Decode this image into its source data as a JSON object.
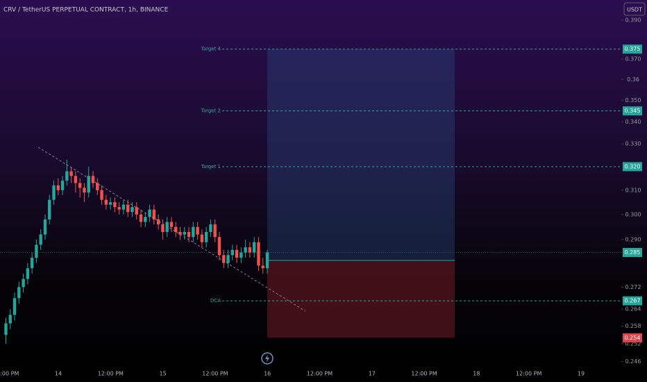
{
  "chart_data": {
    "type": "candlestick",
    "title": "CRV / TetherUS PERPETUAL CONTRACT, 1h, BINANCE",
    "currency": "USDT",
    "log_scale": true,
    "ylim": [
      0.2393,
      0.4007
    ],
    "yticks": [
      {
        "value": 0.39,
        "label": "0.390"
      },
      {
        "value": 0.37,
        "label": "0.370"
      },
      0.36,
      {
        "value": 0.35,
        "label": "0.350"
      },
      {
        "value": 0.34,
        "label": "0.340"
      },
      {
        "value": 0.33,
        "label": "0.330"
      },
      {
        "value": 0.31,
        "label": "0.310"
      },
      {
        "value": 0.3,
        "label": "0.300"
      },
      {
        "value": 0.29,
        "label": "0.290"
      },
      0.272,
      0.264,
      0.258,
      0.252,
      0.246
    ],
    "x_labels": [
      "12:00 PM",
      "14",
      "12:00 PM",
      "15",
      "12:00 PM",
      "16",
      "12:00 PM",
      "17",
      "12:00 PM",
      "18",
      "12:00 PM",
      "19"
    ],
    "up_color": "#26a69a",
    "down_color": "#ef5350",
    "candles": [
      [
        0.255,
        0.261,
        0.252,
        0.259
      ],
      [
        0.259,
        0.264,
        0.257,
        0.262
      ],
      [
        0.262,
        0.27,
        0.26,
        0.268
      ],
      [
        0.268,
        0.274,
        0.266,
        0.272
      ],
      [
        0.272,
        0.277,
        0.27,
        0.275
      ],
      [
        0.275,
        0.281,
        0.273,
        0.279
      ],
      [
        0.279,
        0.285,
        0.277,
        0.283
      ],
      [
        0.283,
        0.29,
        0.281,
        0.288
      ],
      [
        0.288,
        0.294,
        0.286,
        0.292
      ],
      [
        0.292,
        0.3,
        0.29,
        0.298
      ],
      [
        0.298,
        0.308,
        0.296,
        0.306
      ],
      [
        0.306,
        0.314,
        0.304,
        0.312
      ],
      [
        0.312,
        0.315,
        0.308,
        0.31
      ],
      [
        0.31,
        0.316,
        0.308,
        0.314
      ],
      [
        0.314,
        0.323,
        0.312,
        0.318
      ],
      [
        0.318,
        0.32,
        0.313,
        0.316
      ],
      [
        0.316,
        0.318,
        0.309,
        0.313
      ],
      [
        0.313,
        0.315,
        0.307,
        0.311
      ],
      [
        0.311,
        0.313,
        0.305,
        0.309
      ],
      [
        0.309,
        0.32,
        0.307,
        0.316
      ],
      [
        0.316,
        0.318,
        0.311,
        0.313
      ],
      [
        0.313,
        0.315,
        0.308,
        0.31
      ],
      [
        0.31,
        0.312,
        0.304,
        0.306
      ],
      [
        0.306,
        0.308,
        0.302,
        0.304
      ],
      [
        0.304,
        0.307,
        0.302,
        0.305
      ],
      [
        0.305,
        0.307,
        0.301,
        0.303
      ],
      [
        0.303,
        0.305,
        0.3,
        0.302
      ],
      [
        0.302,
        0.306,
        0.3,
        0.304
      ],
      [
        0.304,
        0.306,
        0.299,
        0.301
      ],
      [
        0.301,
        0.305,
        0.299,
        0.303
      ],
      [
        0.303,
        0.305,
        0.298,
        0.3
      ],
      [
        0.3,
        0.302,
        0.295,
        0.297
      ],
      [
        0.297,
        0.301,
        0.295,
        0.299
      ],
      [
        0.299,
        0.304,
        0.297,
        0.302
      ],
      [
        0.302,
        0.304,
        0.296,
        0.298
      ],
      [
        0.298,
        0.3,
        0.294,
        0.296
      ],
      [
        0.296,
        0.298,
        0.29,
        0.293
      ],
      [
        0.293,
        0.299,
        0.291,
        0.297
      ],
      [
        0.297,
        0.299,
        0.293,
        0.295
      ],
      [
        0.295,
        0.297,
        0.291,
        0.293
      ],
      [
        0.293,
        0.295,
        0.29,
        0.292
      ],
      [
        0.292,
        0.295,
        0.29,
        0.293
      ],
      [
        0.293,
        0.295,
        0.289,
        0.291
      ],
      [
        0.291,
        0.297,
        0.289,
        0.295
      ],
      [
        0.295,
        0.297,
        0.29,
        0.292
      ],
      [
        0.292,
        0.294,
        0.287,
        0.289
      ],
      [
        0.289,
        0.295,
        0.287,
        0.293
      ],
      [
        0.293,
        0.298,
        0.291,
        0.296
      ],
      [
        0.296,
        0.298,
        0.289,
        0.291
      ],
      [
        0.291,
        0.293,
        0.282,
        0.284
      ],
      [
        0.284,
        0.286,
        0.279,
        0.281
      ],
      [
        0.281,
        0.286,
        0.279,
        0.284
      ],
      [
        0.284,
        0.288,
        0.282,
        0.286
      ],
      [
        0.286,
        0.288,
        0.281,
        0.283
      ],
      [
        0.283,
        0.287,
        0.281,
        0.285
      ],
      [
        0.285,
        0.29,
        0.283,
        0.287
      ],
      [
        0.287,
        0.289,
        0.283,
        0.285
      ],
      [
        0.285,
        0.291,
        0.283,
        0.289
      ],
      [
        0.289,
        0.291,
        0.278,
        0.28
      ],
      [
        0.28,
        0.283,
        0.277,
        0.279
      ],
      [
        0.279,
        0.286,
        0.277,
        0.285
      ]
    ],
    "levels": [
      {
        "name": "Target 4",
        "value": 0.375,
        "value_label": "0.375"
      },
      {
        "name": "Target 2",
        "value": 0.345,
        "value_label": "0.345"
      },
      {
        "name": "Target 1",
        "value": 0.32,
        "value_label": "0.320"
      },
      {
        "name": "DCA",
        "value": 0.267,
        "value_label": "0.267"
      }
    ],
    "position": {
      "entry": 0.282,
      "target": 0.375,
      "stop": 0.254,
      "stop_label": "0.254"
    },
    "last_price": 0.285,
    "last_price_label": "0.285"
  }
}
